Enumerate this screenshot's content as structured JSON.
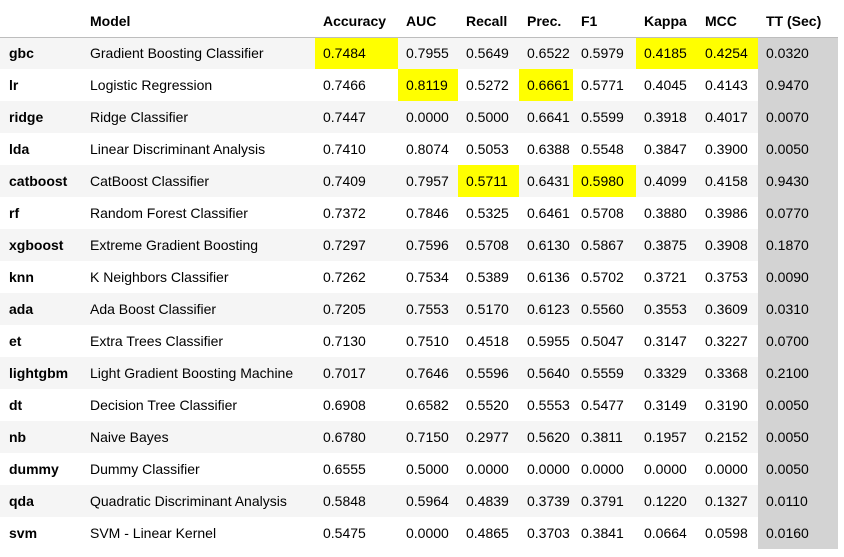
{
  "table": {
    "columns": [
      "",
      "Model",
      "Accuracy",
      "AUC",
      "Recall",
      "Prec.",
      "F1",
      "Kappa",
      "MCC",
      "TT (Sec)"
    ],
    "highlight_color": "#ffff00",
    "tt_column_color": "#d3d3d3",
    "rows": [
      {
        "id": "gbc",
        "model": "Gradient Boosting Classifier",
        "values": [
          "0.7484",
          "0.7955",
          "0.5649",
          "0.6522",
          "0.5979",
          "0.4185",
          "0.4254",
          "0.0320"
        ],
        "highlight": [
          0,
          5,
          6
        ]
      },
      {
        "id": "lr",
        "model": "Logistic Regression",
        "values": [
          "0.7466",
          "0.8119",
          "0.5272",
          "0.6661",
          "0.5771",
          "0.4045",
          "0.4143",
          "0.9470"
        ],
        "highlight": [
          1,
          3
        ]
      },
      {
        "id": "ridge",
        "model": "Ridge Classifier",
        "values": [
          "0.7447",
          "0.0000",
          "0.5000",
          "0.6641",
          "0.5599",
          "0.3918",
          "0.4017",
          "0.0070"
        ],
        "highlight": []
      },
      {
        "id": "lda",
        "model": "Linear Discriminant Analysis",
        "values": [
          "0.7410",
          "0.8074",
          "0.5053",
          "0.6388",
          "0.5548",
          "0.3847",
          "0.3900",
          "0.0050"
        ],
        "highlight": []
      },
      {
        "id": "catboost",
        "model": "CatBoost Classifier",
        "values": [
          "0.7409",
          "0.7957",
          "0.5711",
          "0.6431",
          "0.5980",
          "0.4099",
          "0.4158",
          "0.9430"
        ],
        "highlight": [
          2,
          4
        ]
      },
      {
        "id": "rf",
        "model": "Random Forest Classifier",
        "values": [
          "0.7372",
          "0.7846",
          "0.5325",
          "0.6461",
          "0.5708",
          "0.3880",
          "0.3986",
          "0.0770"
        ],
        "highlight": []
      },
      {
        "id": "xgboost",
        "model": "Extreme Gradient Boosting",
        "values": [
          "0.7297",
          "0.7596",
          "0.5708",
          "0.6130",
          "0.5867",
          "0.3875",
          "0.3908",
          "0.1870"
        ],
        "highlight": []
      },
      {
        "id": "knn",
        "model": "K Neighbors Classifier",
        "values": [
          "0.7262",
          "0.7534",
          "0.5389",
          "0.6136",
          "0.5702",
          "0.3721",
          "0.3753",
          "0.0090"
        ],
        "highlight": []
      },
      {
        "id": "ada",
        "model": "Ada Boost Classifier",
        "values": [
          "0.7205",
          "0.7553",
          "0.5170",
          "0.6123",
          "0.5560",
          "0.3553",
          "0.3609",
          "0.0310"
        ],
        "highlight": []
      },
      {
        "id": "et",
        "model": "Extra Trees Classifier",
        "values": [
          "0.7130",
          "0.7510",
          "0.4518",
          "0.5955",
          "0.5047",
          "0.3147",
          "0.3227",
          "0.0700"
        ],
        "highlight": []
      },
      {
        "id": "lightgbm",
        "model": "Light Gradient Boosting Machine",
        "values": [
          "0.7017",
          "0.7646",
          "0.5596",
          "0.5640",
          "0.5559",
          "0.3329",
          "0.3368",
          "0.2100"
        ],
        "highlight": []
      },
      {
        "id": "dt",
        "model": "Decision Tree Classifier",
        "values": [
          "0.6908",
          "0.6582",
          "0.5520",
          "0.5553",
          "0.5477",
          "0.3149",
          "0.3190",
          "0.0050"
        ],
        "highlight": []
      },
      {
        "id": "nb",
        "model": "Naive Bayes",
        "values": [
          "0.6780",
          "0.7150",
          "0.2977",
          "0.5620",
          "0.3811",
          "0.1957",
          "0.2152",
          "0.0050"
        ],
        "highlight": []
      },
      {
        "id": "dummy",
        "model": "Dummy Classifier",
        "values": [
          "0.6555",
          "0.5000",
          "0.0000",
          "0.0000",
          "0.0000",
          "0.0000",
          "0.0000",
          "0.0050"
        ],
        "highlight": []
      },
      {
        "id": "qda",
        "model": "Quadratic Discriminant Analysis",
        "values": [
          "0.5848",
          "0.5964",
          "0.4839",
          "0.3739",
          "0.3791",
          "0.1220",
          "0.1327",
          "0.0110"
        ],
        "highlight": []
      },
      {
        "id": "svm",
        "model": "SVM - Linear Kernel",
        "values": [
          "0.5475",
          "0.0000",
          "0.4865",
          "0.3703",
          "0.3841",
          "0.0664",
          "0.0598",
          "0.0160"
        ],
        "highlight": []
      }
    ]
  }
}
